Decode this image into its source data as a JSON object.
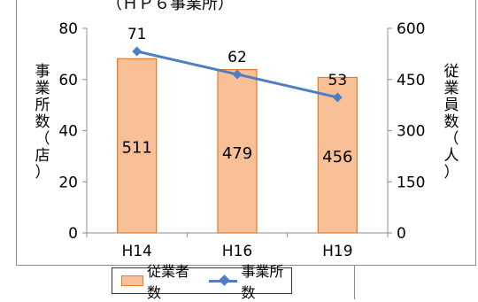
{
  "chart_data": {
    "type": "bar",
    "title": "（ＨＰ６事業所）",
    "categories": [
      "H14",
      "H16",
      "H19"
    ],
    "series": [
      {
        "name": "従業者数",
        "type": "bar",
        "axis": "right",
        "values": [
          511,
          479,
          456
        ]
      },
      {
        "name": "事業所数",
        "type": "line",
        "axis": "left",
        "values": [
          71,
          62,
          53
        ]
      }
    ],
    "y_left": {
      "label": "事業所数（店）",
      "ylim": [
        0,
        80
      ],
      "ticks": [
        0,
        20,
        40,
        60,
        80
      ]
    },
    "y_right": {
      "label": "従業員数（人）",
      "ylim": [
        0,
        600
      ],
      "ticks": [
        0,
        150,
        300,
        450,
        600
      ]
    },
    "legend_position": "bottom",
    "grid": false,
    "colors": {
      "bar_fill": "#f9c097",
      "bar_edge": "#e07a2d",
      "line": "#4e7fc4"
    }
  }
}
